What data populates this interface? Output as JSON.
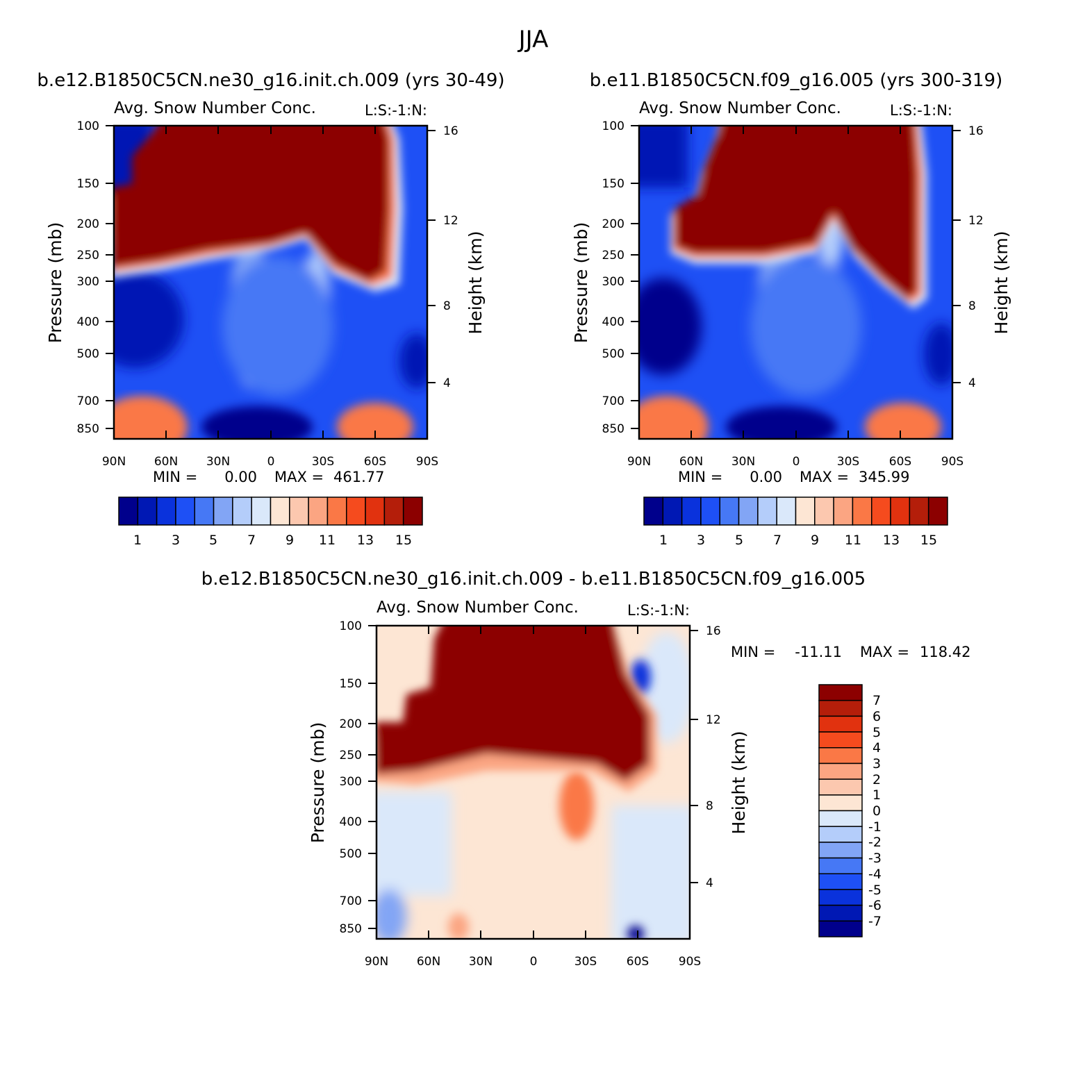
{
  "figure": {
    "title": "JJA",
    "title_right_tag": "L:S:-1:N:"
  },
  "colors": {
    "abs_palette": [
      "#00008c",
      "#0018b4",
      "#0a32dc",
      "#1e50f5",
      "#4678f5",
      "#82a5f5",
      "#b4cdfa",
      "#dae8fa",
      "#fde6d4",
      "#fcc8af",
      "#fba582",
      "#fa7846",
      "#f54b1e",
      "#e1320f",
      "#b41e0a",
      "#8c0000"
    ],
    "diff_palette_top_to_bottom": [
      "#8c0000",
      "#b41e0a",
      "#e1320f",
      "#f54b1e",
      "#fa7846",
      "#fba582",
      "#fcc8af",
      "#fde6d4",
      "#dae8fa",
      "#b4cdfa",
      "#82a5f5",
      "#4678f5",
      "#1e50f5",
      "#0a32dc",
      "#0018b4",
      "#00008c"
    ]
  },
  "chart_data": [
    {
      "type": "heatmap",
      "panel": "top-left",
      "case_title": "b.e12.B1850C5CN.ne30_g16.init.ch.009 (yrs 30-49)",
      "variable_title": "Avg. Snow Number Conc.",
      "tag": "L:S:-1:N:",
      "ylabel": "Pressure (mb)",
      "ylabel_right": "Height (km)",
      "x_ticks": [
        "90N",
        "60N",
        "30N",
        "0",
        "30S",
        "60S",
        "90S"
      ],
      "y_ticks": [
        "100",
        "150",
        "200",
        "250",
        "300",
        "400",
        "500",
        "700",
        "850"
      ],
      "y_ticks_right": [
        "16",
        "12",
        "8",
        "4"
      ],
      "min_label": "MIN = ",
      "min_value": "0.00",
      "max_label": "MAX = ",
      "max_value": "461.77",
      "colorbar_labels": [
        "1",
        "3",
        "5",
        "7",
        "9",
        "11",
        "13",
        "15"
      ],
      "colorbar_orientation": "horizontal"
    },
    {
      "type": "heatmap",
      "panel": "top-right",
      "case_title": "b.e11.B1850C5CN.f09_g16.005 (yrs 300-319)",
      "variable_title": "Avg. Snow Number Conc.",
      "tag": "L:S:-1:N:",
      "ylabel": "Pressure (mb)",
      "ylabel_right": "Height (km)",
      "x_ticks": [
        "90N",
        "60N",
        "30N",
        "0",
        "30S",
        "60S",
        "90S"
      ],
      "y_ticks": [
        "100",
        "150",
        "200",
        "250",
        "300",
        "400",
        "500",
        "700",
        "850"
      ],
      "y_ticks_right": [
        "16",
        "12",
        "8",
        "4"
      ],
      "min_label": "MIN = ",
      "min_value": "0.00",
      "max_label": "MAX = ",
      "max_value": "345.99",
      "colorbar_labels": [
        "1",
        "3",
        "5",
        "7",
        "9",
        "11",
        "13",
        "15"
      ],
      "colorbar_orientation": "horizontal"
    },
    {
      "type": "heatmap",
      "panel": "bottom",
      "case_title": "b.e12.B1850C5CN.ne30_g16.init.ch.009 - b.e11.B1850C5CN.f09_g16.005",
      "variable_title": "Avg. Snow Number Conc.",
      "tag": "L:S:-1:N:",
      "ylabel": "Pressure (mb)",
      "ylabel_right": "Height (km)",
      "x_ticks": [
        "90N",
        "60N",
        "30N",
        "0",
        "30S",
        "60S",
        "90S"
      ],
      "y_ticks": [
        "100",
        "150",
        "200",
        "250",
        "300",
        "400",
        "500",
        "700",
        "850"
      ],
      "y_ticks_right": [
        "16",
        "12",
        "8",
        "4"
      ],
      "min_label": "MIN = ",
      "min_value": "-11.11",
      "max_label": "MAX = ",
      "max_value": "118.42",
      "colorbar_labels": [
        "7",
        "6",
        "5",
        "4",
        "3",
        "2",
        "1",
        "0",
        "-1",
        "-2",
        "-3",
        "-4",
        "-5",
        "-6",
        "-7"
      ],
      "colorbar_orientation": "vertical"
    }
  ]
}
